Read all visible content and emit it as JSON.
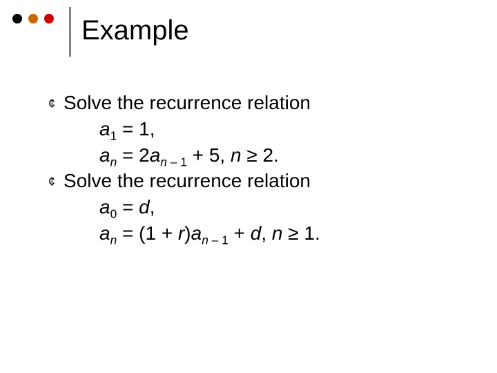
{
  "slide": {
    "title": "Example",
    "dots": {
      "colors": [
        "#000000",
        "#cc6600",
        "#cc0000"
      ],
      "size": 14,
      "gap": 9
    },
    "divider": {
      "color": "#808080",
      "width": 3
    },
    "bullets": [
      {
        "lead": "Solve the recurrence relation",
        "lines": [
          {
            "html": "<span class=\"italic\">a</span><sub>1</sub> = 1,"
          },
          {
            "html": "<span class=\"italic\">a<sub>n</sub></span> = 2<span class=\"italic\">a</span><sub><span class=\"italic\">n</span> – 1</sub> + 5, <span class=\"italic\">n</span> ≥ 2."
          }
        ]
      },
      {
        "lead": "Solve the recurrence relation",
        "lines": [
          {
            "html": "<span class=\"italic\">a</span><sub>0</sub> = <span class=\"italic\">d</span>,"
          },
          {
            "html": "<span class=\"italic\">a<sub>n</sub></span> = (1 + <span class=\"italic\">r</span>)<span class=\"italic\">a</span><sub><span class=\"italic\">n</span> – 1</sub> + <span class=\"italic\">d</span>, <span class=\"italic\">n</span> ≥ 1."
          }
        ]
      }
    ]
  },
  "typography": {
    "title_fontsize": 40,
    "body_fontsize": 28,
    "font_family": "Arial"
  },
  "colors": {
    "background": "#ffffff",
    "text": "#000000"
  }
}
